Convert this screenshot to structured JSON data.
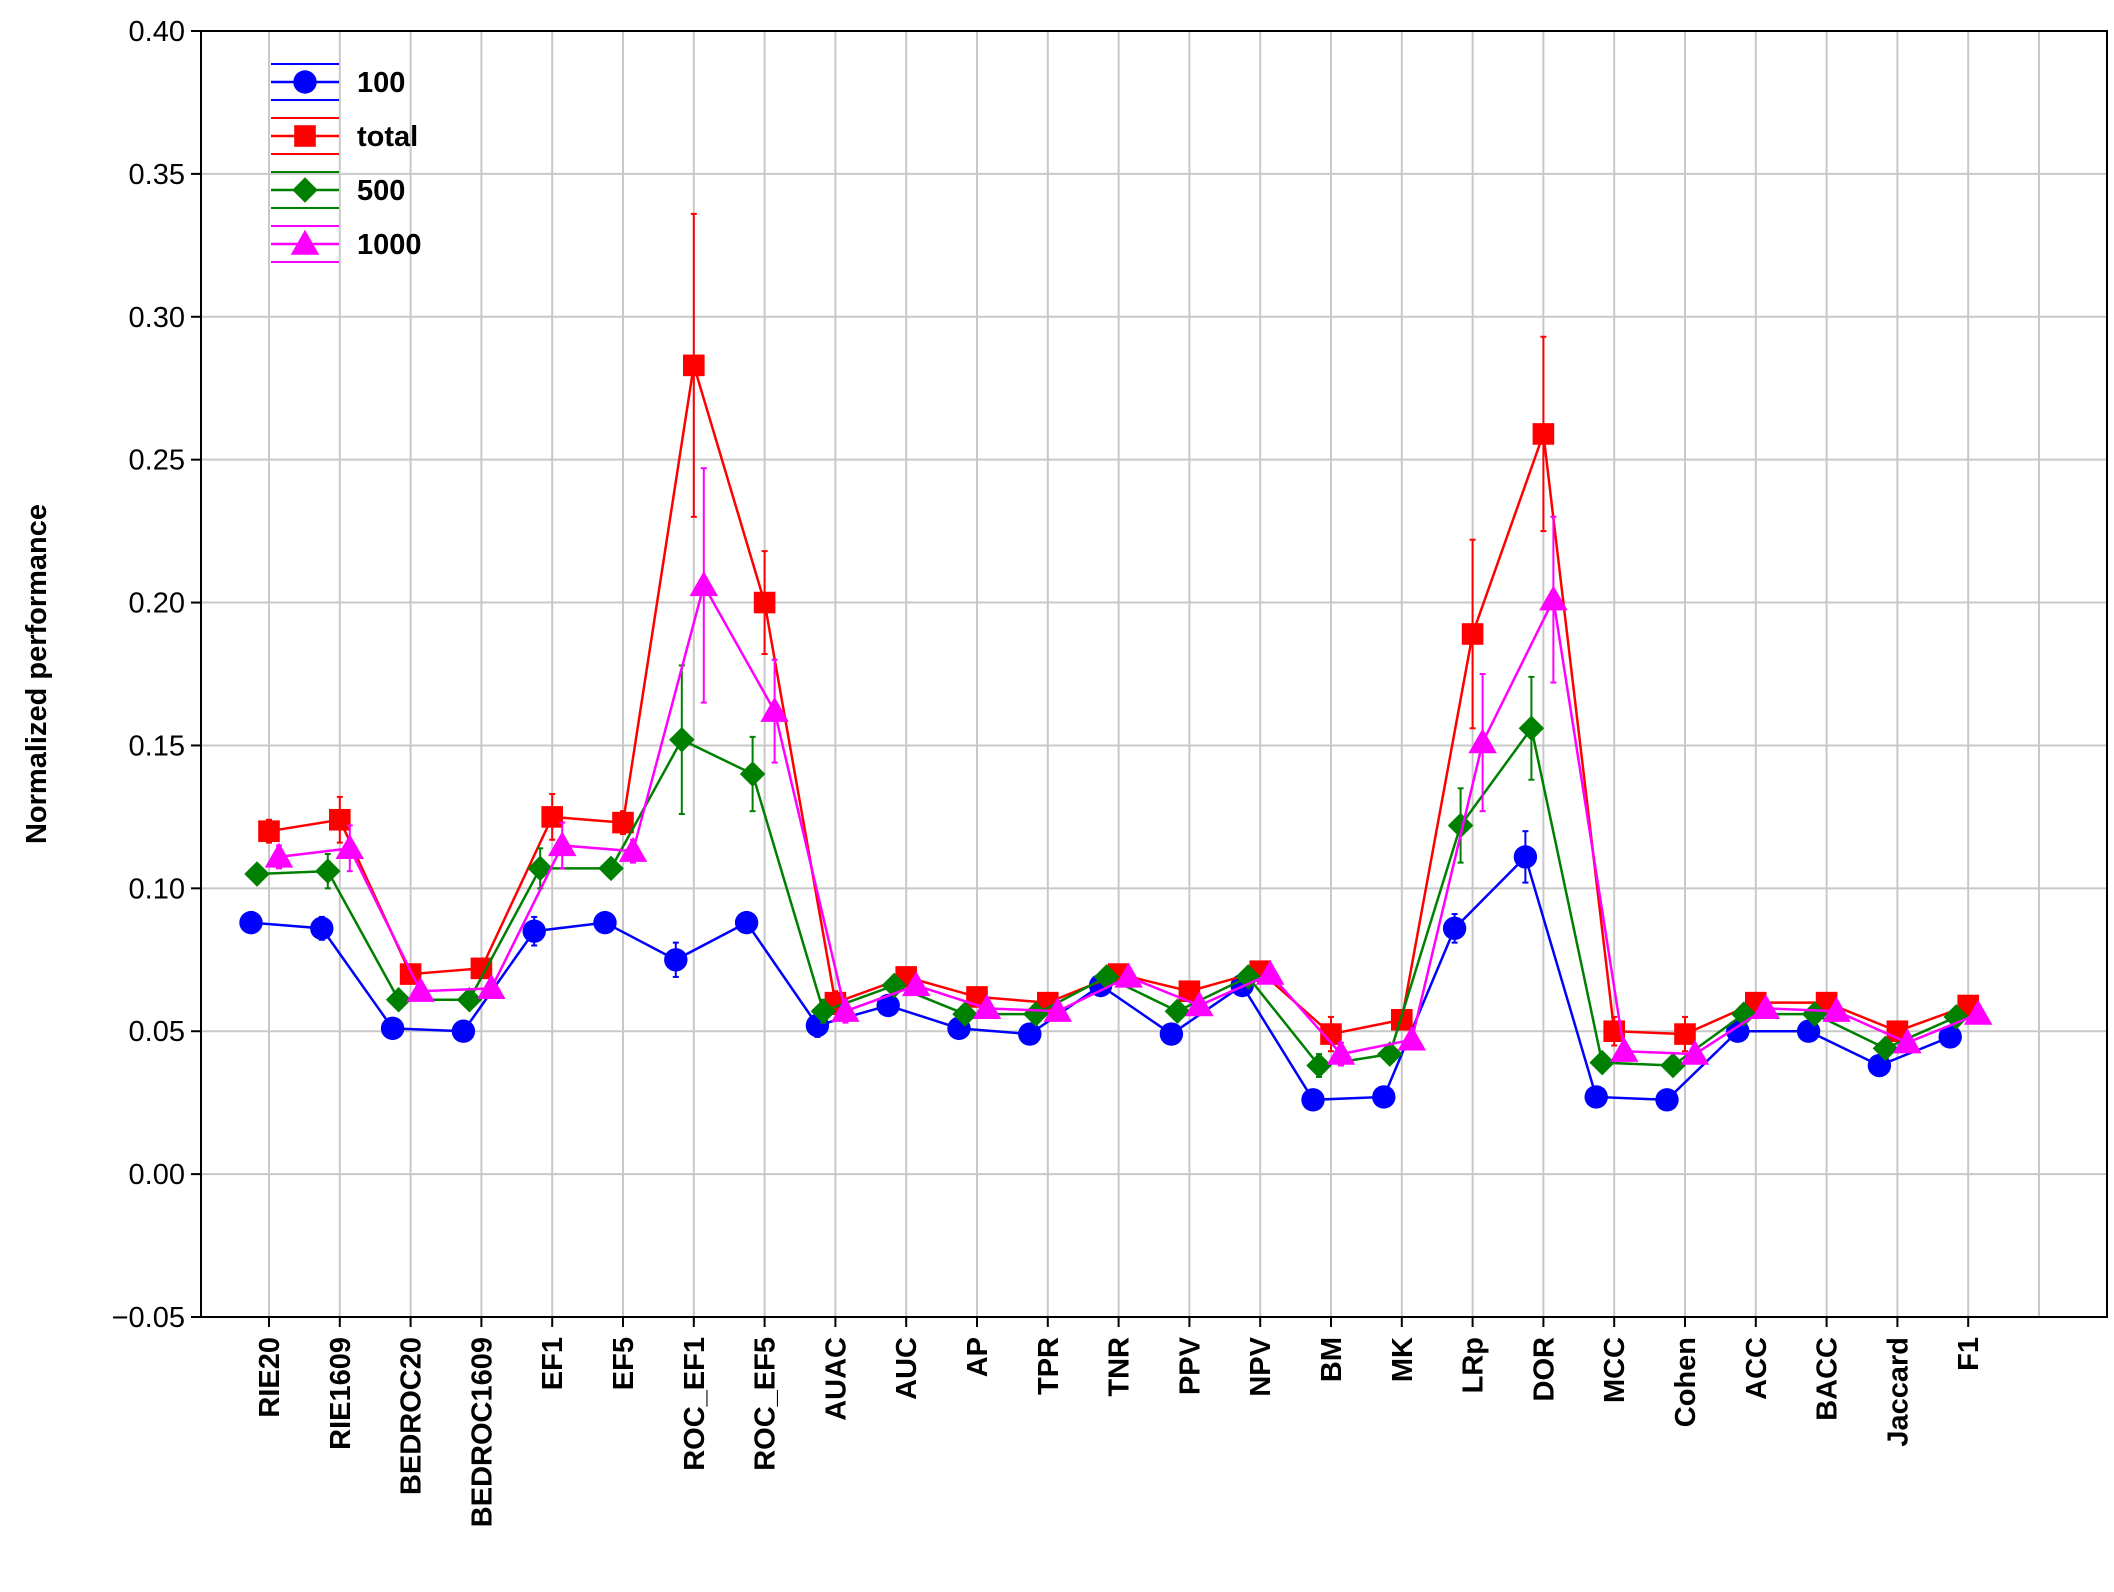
{
  "chart_data": {
    "type": "line",
    "title": "",
    "xlabel": "",
    "ylabel": "Normalized performance",
    "ylim": [
      -0.05,
      0.4
    ],
    "yticks": [
      -0.05,
      0.0,
      0.05,
      0.1,
      0.15,
      0.2,
      0.25,
      0.3,
      0.35,
      0.4
    ],
    "ytick_labels": [
      "−0.05",
      "0.00",
      "0.05",
      "0.10",
      "0.15",
      "0.20",
      "0.25",
      "0.30",
      "0.35",
      "0.40"
    ],
    "grid": true,
    "legend_position": "top-left",
    "categories": [
      "RIE20",
      "RIE1609",
      "BEDROC20",
      "BEDROC1609",
      "EF1",
      "EF5",
      "ROC_EF1",
      "ROC_EF5",
      "AUAC",
      "AUC",
      "AP",
      "TPR",
      "TNR",
      "PPV",
      "NPV",
      "BM",
      "MK",
      "LRp",
      "DOR",
      "MCC",
      "Cohen",
      "ACC",
      "BACC",
      "Jaccard",
      "F1"
    ],
    "series": [
      {
        "name": "100",
        "color": "#0000ff",
        "marker": "circle",
        "values": [
          0.088,
          0.086,
          0.051,
          0.05,
          0.085,
          0.088,
          0.075,
          0.088,
          0.052,
          0.059,
          0.051,
          0.049,
          0.066,
          0.049,
          0.066,
          0.026,
          0.027,
          0.086,
          0.111,
          0.027,
          0.026,
          0.05,
          0.05,
          0.038,
          0.048
        ],
        "errors": [
          0.003,
          0.004,
          0.002,
          0.002,
          0.005,
          0.003,
          0.006,
          0.003,
          0.004,
          0.003,
          0.003,
          0.002,
          0.003,
          0.003,
          0.003,
          0.002,
          0.002,
          0.005,
          0.009,
          0.002,
          0.002,
          0.002,
          0.002,
          0.002,
          0.002
        ]
      },
      {
        "name": "total",
        "color": "#ff0000",
        "marker": "square",
        "values": [
          0.12,
          0.124,
          0.07,
          0.072,
          0.125,
          0.123,
          0.283,
          0.2,
          0.06,
          0.069,
          0.062,
          0.06,
          0.07,
          0.064,
          0.071,
          0.049,
          0.054,
          0.189,
          0.259,
          0.05,
          0.049,
          0.06,
          0.06,
          0.05,
          0.059
        ],
        "errors": [
          0.004,
          0.008,
          0.003,
          0.003,
          0.008,
          0.004,
          0.053,
          0.018,
          0.004,
          0.003,
          0.003,
          0.003,
          0.003,
          0.003,
          0.003,
          0.006,
          0.003,
          0.033,
          0.034,
          0.005,
          0.006,
          0.003,
          0.003,
          0.003,
          0.003
        ]
      },
      {
        "name": "500",
        "color": "#008000",
        "marker": "diamond",
        "values": [
          0.105,
          0.106,
          0.061,
          0.061,
          0.107,
          0.107,
          0.152,
          0.14,
          0.057,
          0.066,
          0.056,
          0.056,
          0.069,
          0.057,
          0.069,
          0.038,
          0.042,
          0.122,
          0.156,
          0.039,
          0.038,
          0.056,
          0.056,
          0.044,
          0.055
        ],
        "errors": [
          0.003,
          0.006,
          0.002,
          0.002,
          0.007,
          0.003,
          0.026,
          0.013,
          0.004,
          0.003,
          0.002,
          0.002,
          0.003,
          0.003,
          0.003,
          0.004,
          0.002,
          0.013,
          0.018,
          0.003,
          0.003,
          0.002,
          0.002,
          0.002,
          0.002
        ]
      },
      {
        "name": "1000",
        "color": "#ff00ff",
        "marker": "triangle",
        "values": [
          0.111,
          0.114,
          0.064,
          0.065,
          0.115,
          0.113,
          0.206,
          0.162,
          0.057,
          0.066,
          0.058,
          0.057,
          0.069,
          0.059,
          0.07,
          0.042,
          0.047,
          0.151,
          0.201,
          0.043,
          0.042,
          0.058,
          0.057,
          0.046,
          0.056
        ],
        "errors": [
          0.004,
          0.008,
          0.003,
          0.003,
          0.008,
          0.004,
          0.041,
          0.018,
          0.004,
          0.003,
          0.003,
          0.003,
          0.003,
          0.003,
          0.003,
          0.004,
          0.003,
          0.024,
          0.029,
          0.003,
          0.003,
          0.003,
          0.003,
          0.003,
          0.003
        ]
      }
    ]
  }
}
